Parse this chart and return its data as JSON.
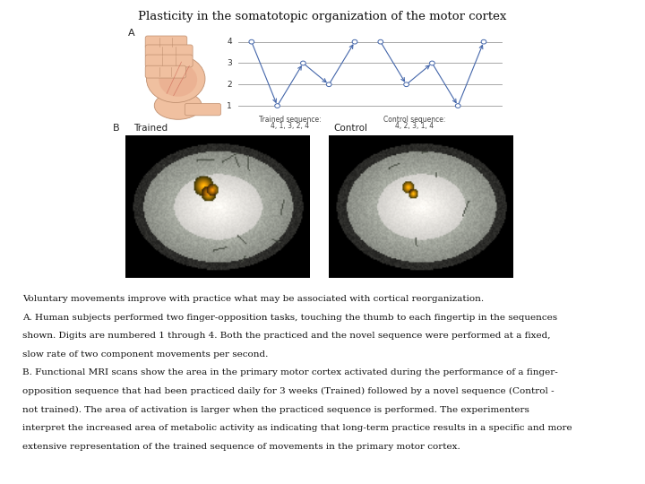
{
  "title": "Plasticity in the somatotopic organization of the motor cortex",
  "title_fontsize": 9.5,
  "bg_color": "#ffffff",
  "panel_A_label": "A",
  "panel_B_label": "B",
  "trained_label": "Trained",
  "control_label": "Control",
  "trained_seq_label": "Trained sequence:",
  "trained_seq_vals": "4, 1, 3, 2, 4",
  "control_seq_label": "Control sequence:",
  "control_seq_vals": "4, 2, 3, 1, 4",
  "line_color": "#4466aa",
  "arrow_color": "#4466aa",
  "node_color": "#ffffff",
  "node_edge_color": "#4466aa",
  "body_text": [
    "Voluntary movements improve with practice what may be associated with cortical reorganization.",
    "A. Human subjects performed two finger-opposition tasks, touching the thumb to each fingertip in the sequences",
    "shown. Digits are numbered 1 through 4. Both the practiced and the novel sequence were performed at a fixed,",
    "slow rate of two component movements per second.",
    "B. Functional MRI scans show the area in the primary motor cortex activated during the performance of a finger-",
    "opposition sequence that had been practiced daily for 3 weeks (Trained) followed by a novel sequence (Control -",
    "not trained). The area of activation is larger when the practiced sequence is performed. The experimenters",
    "interpret the increased area of metabolic activity as indicating that long-term practice results in a specific and more",
    "extensive representation of the trained sequence of movements in the primary motor cortex."
  ],
  "body_fontsize": 7.5,
  "fig_width": 7.2,
  "fig_height": 5.4,
  "dpi": 100
}
